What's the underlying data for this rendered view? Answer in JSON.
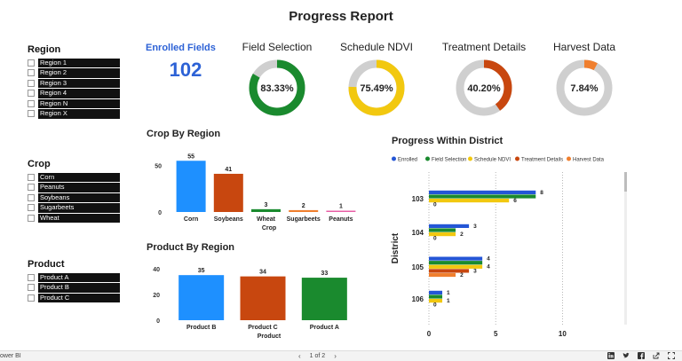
{
  "report": {
    "title": "Progress Report"
  },
  "slicers": {
    "region": {
      "title": "Region",
      "items": [
        "Region 1",
        "Region 2",
        "Region 3",
        "Region 4",
        "Region N",
        "Region X"
      ]
    },
    "crop": {
      "title": "Crop",
      "items": [
        "Corn",
        "Peanuts",
        "Soybeans",
        "Sugarbeets",
        "Wheat"
      ]
    },
    "product": {
      "title": "Product",
      "items": [
        "Product A",
        "Product B",
        "Product C"
      ]
    }
  },
  "kpi": {
    "label": "Enrolled Fields",
    "value": "102"
  },
  "gauges": [
    {
      "title": "Field Selection",
      "value": "83.33%",
      "fraction": 0.8333,
      "color": "#1a8a2e"
    },
    {
      "title": "Schedule NDVI",
      "value": "75.49%",
      "fraction": 0.7549,
      "color": "#f2c80f"
    },
    {
      "title": "Treatment Details",
      "value": "40.20%",
      "fraction": 0.402,
      "color": "#c8470f"
    },
    {
      "title": "Harvest Data",
      "value": "7.84%",
      "fraction": 0.0784,
      "color": "#f07f2e"
    }
  ],
  "gauge_track_color": "#cfcfcf",
  "crop_chart": {
    "section_title": "Crop By Region",
    "chart_data": {
      "type": "bar",
      "categories": [
        "Corn",
        "Soybeans",
        "Wheat",
        "Sugarbeets",
        "Peanuts"
      ],
      "values": [
        55,
        41,
        3,
        2,
        1
      ],
      "colors": [
        "#1e90ff",
        "#c8470f",
        "#1a8a2e",
        "#f07f2e",
        "#e85fa6"
      ],
      "xlabel": "Crop",
      "ylabel": "",
      "yticks": [
        "0",
        "50"
      ],
      "ylim": [
        0,
        60
      ],
      "grid": false
    }
  },
  "product_chart": {
    "section_title": "Product By Region",
    "chart_data": {
      "type": "bar",
      "categories": [
        "Product B",
        "Product C",
        "Product A"
      ],
      "values": [
        35,
        34,
        33
      ],
      "colors": [
        "#1e90ff",
        "#c8470f",
        "#1a8a2e"
      ],
      "xlabel": "Product",
      "ylabel": "",
      "yticks": [
        "0",
        "20",
        "40"
      ],
      "ylim": [
        0,
        42
      ],
      "grid": false
    }
  },
  "district_chart": {
    "section_title": "Progress Within District",
    "chart_data": {
      "type": "bar",
      "orientation": "horizontal",
      "categories": [
        "103",
        "104",
        "105",
        "106"
      ],
      "series": [
        {
          "name": "Enrolled",
          "color": "#2456d6",
          "values": [
            8,
            3,
            4,
            1
          ]
        },
        {
          "name": "Field Selection",
          "color": "#1a8a2e",
          "values": [
            8,
            2,
            4,
            1
          ]
        },
        {
          "name": "Schedule NDVI",
          "color": "#f2c80f",
          "values": [
            6,
            2,
            4,
            1
          ]
        },
        {
          "name": "Treatment Details",
          "color": "#c8470f",
          "values": [
            0,
            0,
            3,
            0
          ]
        },
        {
          "name": "Harvest Data",
          "color": "#f07f2e",
          "values": [
            0,
            0,
            2,
            0
          ]
        }
      ],
      "labels": [
        [
          "8",
          "",
          "6",
          "0",
          ""
        ],
        [
          "3",
          "",
          "2",
          "0",
          ""
        ],
        [
          "4",
          "",
          "4",
          "3",
          "2"
        ],
        [
          "1",
          "",
          "1",
          "0",
          ""
        ]
      ],
      "ylabel": "District",
      "xticks": [
        "0",
        "5",
        "10"
      ],
      "xlim": [
        0,
        14.5
      ],
      "legend": "top",
      "grid": "vertical-dotted"
    }
  },
  "footer": {
    "brand": "ower BI",
    "pager": "1 of 2",
    "prev": "‹",
    "next": "›"
  }
}
